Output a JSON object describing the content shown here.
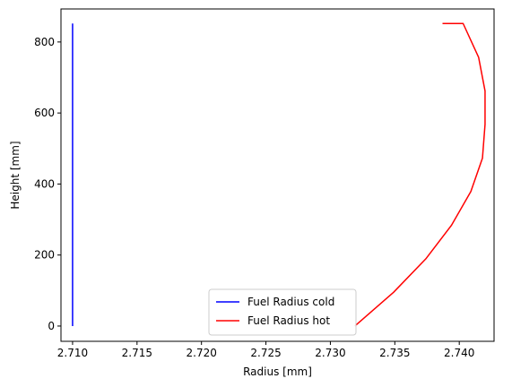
{
  "chart_data": {
    "type": "line",
    "title": "",
    "xlabel": "Radius [mm]",
    "ylabel": "Height [mm]",
    "xlim": [
      2.7091,
      2.7427
    ],
    "ylim": [
      -43,
      893
    ],
    "xticks": [
      2.71,
      2.715,
      2.72,
      2.725,
      2.73,
      2.735,
      2.74
    ],
    "xtick_labels": [
      "2.710",
      "2.715",
      "2.720",
      "2.725",
      "2.730",
      "2.735",
      "2.740"
    ],
    "yticks": [
      0,
      200,
      400,
      600,
      800
    ],
    "ytick_labels": [
      "0",
      "200",
      "400",
      "600",
      "800"
    ],
    "grid": false,
    "legend_position": "lower center",
    "series": [
      {
        "name": "Fuel Radius cold",
        "color": "#0000ff",
        "x": [
          2.71,
          2.71
        ],
        "y": [
          0,
          852
        ]
      },
      {
        "name": "Fuel Radius hot",
        "color": "#ff0000",
        "x": [
          2.7319,
          2.7349,
          2.7374,
          2.7394,
          2.7409,
          2.7418,
          2.742,
          2.742,
          2.7415,
          2.7403,
          2.7387
        ],
        "y": [
          0,
          95,
          189,
          284,
          379,
          473,
          568,
          662,
          757,
          852,
          852
        ]
      }
    ]
  }
}
